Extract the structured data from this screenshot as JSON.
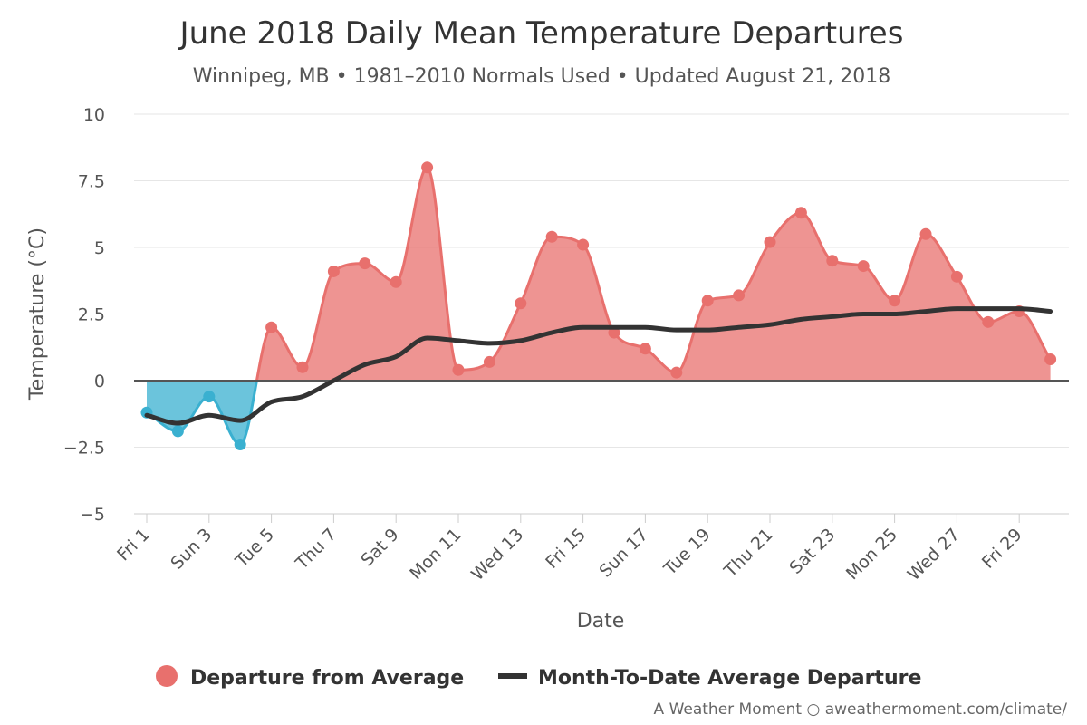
{
  "chart_data": {
    "type": "area",
    "title": "June 2018 Daily Mean Temperature Departures",
    "subtitle": "Winnipeg, MB • 1981–2010 Normals Used • Updated August 21, 2018",
    "xlabel": "Date",
    "ylabel": "Temperature (°C)",
    "ylim": [
      -5,
      10
    ],
    "yticks": [
      "−5",
      "−2.5",
      "0",
      "2.5",
      "5",
      "7.5",
      "10"
    ],
    "ytick_values": [
      -5,
      -2.5,
      0,
      2.5,
      5,
      7.5,
      10
    ],
    "x_tick_labels": [
      "Fri 1",
      "Sun 3",
      "Tue 5",
      "Thu 7",
      "Sat 9",
      "Mon 11",
      "Wed 13",
      "Fri 15",
      "Sun 17",
      "Tue 19",
      "Thu 21",
      "Sat 23",
      "Mon 25",
      "Wed 27",
      "Fri 29"
    ],
    "x_tick_days": [
      1,
      3,
      5,
      7,
      9,
      11,
      13,
      15,
      17,
      19,
      21,
      23,
      25,
      27,
      29
    ],
    "days": [
      1,
      2,
      3,
      4,
      5,
      6,
      7,
      8,
      9,
      10,
      11,
      12,
      13,
      14,
      15,
      16,
      17,
      18,
      19,
      20,
      21,
      22,
      23,
      24,
      25,
      26,
      27,
      28,
      29,
      30
    ],
    "grid": true,
    "legend_position": "bottom-center",
    "series": [
      {
        "name": "Departure from Average",
        "kind": "area",
        "positive_color": "#e8706d",
        "negative_color": "#3ab0d0",
        "values": [
          -1.2,
          -1.9,
          -0.6,
          -2.4,
          2.0,
          0.5,
          4.1,
          4.4,
          3.7,
          8.0,
          0.4,
          0.7,
          2.9,
          5.4,
          5.1,
          1.8,
          1.2,
          0.3,
          3.0,
          3.2,
          5.2,
          6.3,
          4.5,
          4.3,
          3.0,
          5.5,
          3.9,
          2.2,
          2.6,
          0.8
        ]
      },
      {
        "name": "Month-To-Date Average Departure",
        "kind": "line",
        "color": "#333333",
        "values": [
          -1.3,
          -1.6,
          -1.3,
          -1.5,
          -0.8,
          -0.6,
          0.0,
          0.6,
          0.9,
          1.6,
          1.5,
          1.4,
          1.5,
          1.8,
          2.0,
          2.0,
          2.0,
          1.9,
          1.9,
          2.0,
          2.1,
          2.3,
          2.4,
          2.5,
          2.5,
          2.6,
          2.7,
          2.7,
          2.7,
          2.6
        ]
      }
    ],
    "credit": "A Weather Moment ○ aweathermoment.com/climate/"
  }
}
